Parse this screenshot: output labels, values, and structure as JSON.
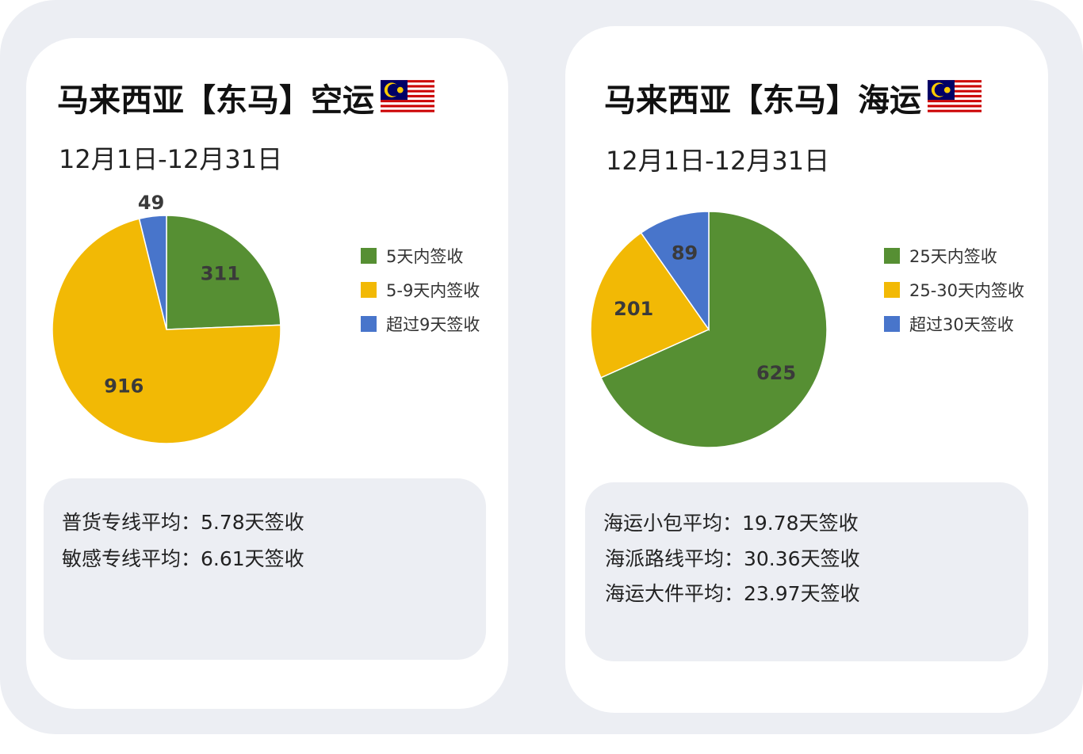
{
  "colors": {
    "green": "#568f33",
    "yellow": "#f2b905",
    "blue": "#4875cb",
    "background": "#eceef3"
  },
  "chart_data": [
    {
      "type": "pie",
      "title": "马来西亚【东马】空运",
      "subtitle": "12月1日-12月31日",
      "categories": [
        "5天内签收",
        "5-9天内签收",
        "超过9天签收"
      ],
      "values": [
        311,
        916,
        49
      ],
      "colors": [
        "#568f33",
        "#f2b905",
        "#4875cb"
      ],
      "legend": "right",
      "stats": [
        "普货专线平均：5.78天签收",
        "敏感专线平均：6.61天签收"
      ]
    },
    {
      "type": "pie",
      "title": "马来西亚【东马】海运",
      "subtitle": "12月1日-12月31日",
      "categories": [
        "25天内签收",
        "25-30天内签收",
        "超过30天签收"
      ],
      "values": [
        625,
        201,
        89
      ],
      "colors": [
        "#568f33",
        "#f2b905",
        "#4875cb"
      ],
      "legend": "right",
      "stats": [
        "海运小包平均：19.78天签收",
        "海派路线平均：30.36天签收",
        "海运大件平均：23.97天签收"
      ]
    }
  ],
  "flag_icon": "malaysia-flag"
}
